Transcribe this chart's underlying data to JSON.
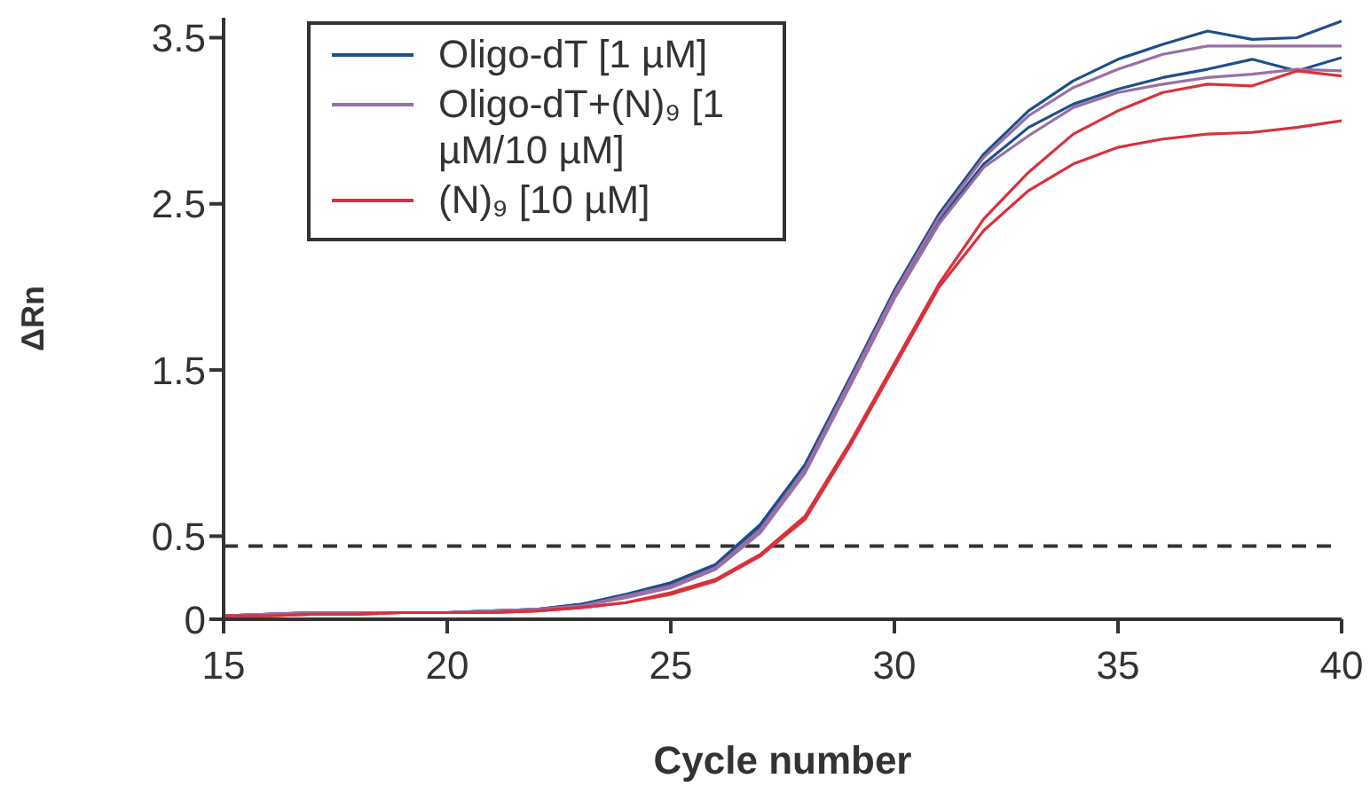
{
  "chart_data": {
    "type": "line",
    "xlabel": "Cycle number",
    "ylabel": "ΔRn",
    "x": [
      15,
      16,
      17,
      18,
      19,
      20,
      21,
      22,
      23,
      24,
      25,
      26,
      27,
      28,
      29,
      30,
      31,
      32,
      33,
      34,
      35,
      36,
      37,
      38,
      39,
      40
    ],
    "series": [
      {
        "name": "Oligo-dT [1 µM]",
        "color": "#1f4f8a",
        "values": [
          0.02,
          0.03,
          0.04,
          0.04,
          0.04,
          0.04,
          0.05,
          0.06,
          0.09,
          0.15,
          0.22,
          0.33,
          0.57,
          0.93,
          1.45,
          1.98,
          2.44,
          2.8,
          3.06,
          3.24,
          3.37,
          3.46,
          3.54,
          3.49,
          3.5,
          3.6
        ]
      },
      {
        "color": "#1f4f8a",
        "values": [
          0.02,
          0.03,
          0.04,
          0.04,
          0.04,
          0.04,
          0.05,
          0.06,
          0.09,
          0.14,
          0.21,
          0.32,
          0.55,
          0.9,
          1.42,
          1.95,
          2.4,
          2.74,
          2.96,
          3.1,
          3.19,
          3.26,
          3.31,
          3.37,
          3.3,
          3.38
        ]
      },
      {
        "name": "Oligo-dT+(N)₉ [1 µM/10 µM]",
        "color": "#9a6fa4",
        "values": [
          0.02,
          0.03,
          0.04,
          0.04,
          0.04,
          0.04,
          0.05,
          0.06,
          0.08,
          0.14,
          0.2,
          0.31,
          0.54,
          0.9,
          1.43,
          1.96,
          2.42,
          2.78,
          3.03,
          3.2,
          3.31,
          3.4,
          3.45,
          3.45,
          3.45,
          3.45
        ]
      },
      {
        "color": "#9a6fa4",
        "values": [
          0.02,
          0.03,
          0.03,
          0.04,
          0.04,
          0.04,
          0.05,
          0.06,
          0.08,
          0.13,
          0.19,
          0.3,
          0.52,
          0.88,
          1.4,
          1.93,
          2.38,
          2.72,
          2.91,
          3.08,
          3.17,
          3.22,
          3.26,
          3.28,
          3.31,
          3.3
        ]
      },
      {
        "name": "(N)₉ [10 µM]",
        "color": "#d8323c",
        "values": [
          0.02,
          0.02,
          0.03,
          0.03,
          0.04,
          0.04,
          0.04,
          0.05,
          0.07,
          0.1,
          0.16,
          0.24,
          0.39,
          0.62,
          1.06,
          1.54,
          2.02,
          2.41,
          2.69,
          2.92,
          3.06,
          3.17,
          3.22,
          3.21,
          3.3,
          3.27
        ]
      },
      {
        "color": "#d8323c",
        "values": [
          0.02,
          0.02,
          0.03,
          0.03,
          0.04,
          0.04,
          0.04,
          0.05,
          0.07,
          0.1,
          0.15,
          0.23,
          0.38,
          0.6,
          1.04,
          1.52,
          2.0,
          2.34,
          2.58,
          2.74,
          2.84,
          2.89,
          2.92,
          2.93,
          2.96,
          3.0
        ]
      }
    ],
    "xlim": [
      15,
      40
    ],
    "xticks": [
      15,
      20,
      25,
      30,
      35,
      40
    ],
    "ylim": [
      0,
      3.62
    ],
    "yticks": [
      0,
      0.5,
      1.5,
      2.5,
      3.5
    ],
    "ref_lines": [
      {
        "axis": "y",
        "value": 0.44,
        "color": "#333333",
        "line_style": "dashed"
      }
    ],
    "grid": false,
    "legend": "top left",
    "line_style": "solid"
  }
}
